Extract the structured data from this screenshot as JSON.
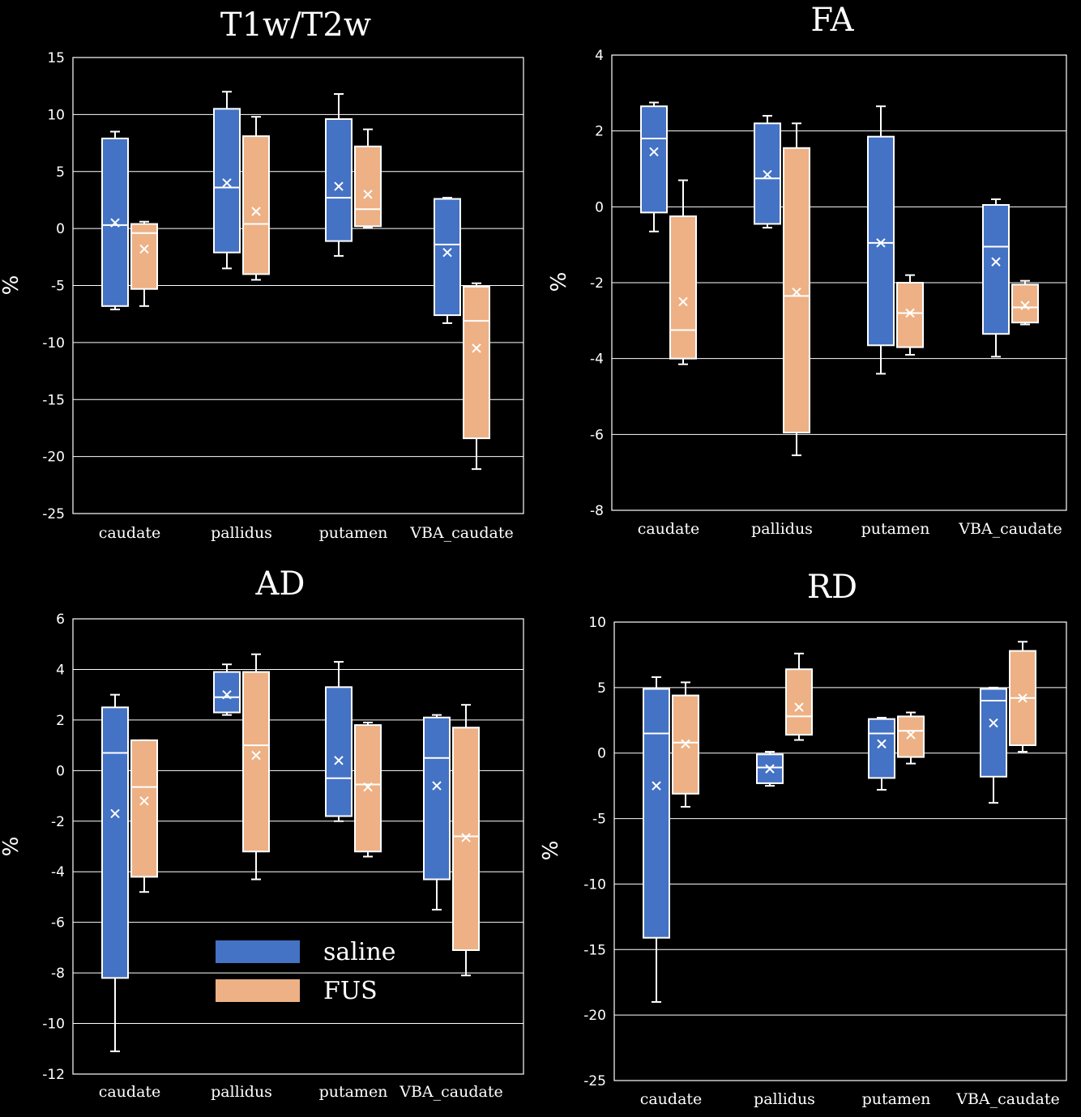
{
  "chart_data": [
    {
      "type": "box",
      "title": "T1w/T2w",
      "ylabel": "%",
      "xlabel": "",
      "ylim": [
        -25,
        15
      ],
      "yticks": [
        15,
        10,
        5,
        0,
        -5,
        -10,
        -15,
        -20,
        -25
      ],
      "categories": [
        "caudate",
        "pallidus",
        "putamen",
        "VBA_caudate"
      ],
      "grid": true,
      "series": [
        {
          "name": "saline",
          "color": "#4472c4",
          "boxes": [
            {
              "min": -7.1,
              "q1": -6.8,
              "median": 0.3,
              "q3": 7.9,
              "max": 8.5,
              "mean": 0.5
            },
            {
              "min": -3.5,
              "q1": -2.1,
              "median": 3.6,
              "q3": 10.5,
              "max": 12.0,
              "mean": 4.0
            },
            {
              "min": -2.4,
              "q1": -1.1,
              "median": 2.7,
              "q3": 9.6,
              "max": 11.8,
              "mean": 3.7
            },
            {
              "min": -8.3,
              "q1": -7.6,
              "median": -1.4,
              "q3": 2.6,
              "max": 2.7,
              "mean": -2.1
            }
          ]
        },
        {
          "name": "FUS",
          "color": "#edb185",
          "boxes": [
            {
              "min": -6.8,
              "q1": -5.3,
              "median": -0.4,
              "q3": 0.4,
              "max": 0.6,
              "mean": -1.8
            },
            {
              "min": -4.5,
              "q1": -4.0,
              "median": 0.4,
              "q3": 8.1,
              "max": 9.8,
              "mean": 1.5
            },
            {
              "min": 0.1,
              "q1": 0.2,
              "median": 1.7,
              "q3": 7.2,
              "max": 8.7,
              "mean": 3.0
            },
            {
              "min": -21.1,
              "q1": -18.4,
              "median": -8.1,
              "q3": -5.1,
              "max": -4.8,
              "mean": -10.5
            }
          ]
        }
      ]
    },
    {
      "type": "box",
      "title": "FA",
      "ylabel": "%",
      "xlabel": "",
      "ylim": [
        -8,
        4
      ],
      "yticks": [
        4,
        2,
        0,
        -2,
        -4,
        -6,
        -8
      ],
      "categories": [
        "caudate",
        "pallidus",
        "putamen",
        "VBA_caudate"
      ],
      "grid": true,
      "series": [
        {
          "name": "saline",
          "color": "#4472c4",
          "boxes": [
            {
              "min": -0.65,
              "q1": -0.15,
              "median": 1.8,
              "q3": 2.65,
              "max": 2.75,
              "mean": 1.45
            },
            {
              "min": -0.55,
              "q1": -0.45,
              "median": 0.75,
              "q3": 2.2,
              "max": 2.4,
              "mean": 0.85
            },
            {
              "min": -4.4,
              "q1": -3.65,
              "median": -0.95,
              "q3": 1.85,
              "max": 2.65,
              "mean": -0.95
            },
            {
              "min": -3.95,
              "q1": -3.35,
              "median": -1.05,
              "q3": 0.05,
              "max": 0.2,
              "mean": -1.45
            }
          ]
        },
        {
          "name": "FUS",
          "color": "#edb185",
          "boxes": [
            {
              "min": -4.15,
              "q1": -4.0,
              "median": -3.25,
              "q3": -0.25,
              "max": 0.7,
              "mean": -2.5
            },
            {
              "min": -6.55,
              "q1": -5.95,
              "median": -2.35,
              "q3": 1.55,
              "max": 2.2,
              "mean": -2.25
            },
            {
              "min": -3.9,
              "q1": -3.7,
              "median": -2.8,
              "q3": -2.0,
              "max": -1.8,
              "mean": -2.8
            },
            {
              "min": -3.1,
              "q1": -3.05,
              "median": -2.65,
              "q3": -2.05,
              "max": -1.95,
              "mean": -2.6
            }
          ]
        }
      ]
    },
    {
      "type": "box",
      "title": "AD",
      "ylabel": "%",
      "xlabel": "",
      "ylim": [
        -12,
        6
      ],
      "yticks": [
        6,
        4,
        2,
        0,
        -2,
        -4,
        -6,
        -8,
        -10,
        -12
      ],
      "categories": [
        "caudate",
        "pallidus",
        "putamen",
        "VBA_caudate"
      ],
      "grid": true,
      "series": [
        {
          "name": "saline",
          "color": "#4472c4",
          "boxes": [
            {
              "min": -11.1,
              "q1": -8.2,
              "median": 0.7,
              "q3": 2.5,
              "max": 3.0,
              "mean": -1.7
            },
            {
              "min": 2.2,
              "q1": 2.3,
              "median": 2.9,
              "q3": 3.9,
              "max": 4.2,
              "mean": 3.0
            },
            {
              "min": -2.0,
              "q1": -1.8,
              "median": -0.3,
              "q3": 3.3,
              "max": 4.3,
              "mean": 0.4
            },
            {
              "min": -5.5,
              "q1": -4.3,
              "median": 0.5,
              "q3": 2.1,
              "max": 2.2,
              "mean": -0.6
            }
          ]
        },
        {
          "name": "FUS",
          "color": "#edb185",
          "boxes": [
            {
              "min": -4.8,
              "q1": -4.2,
              "median": -0.65,
              "q3": 1.2,
              "max": 1.2,
              "mean": -1.2
            },
            {
              "min": -4.3,
              "q1": -3.2,
              "median": 1.0,
              "q3": 3.9,
              "max": 4.6,
              "mean": 0.6
            },
            {
              "min": -3.4,
              "q1": -3.2,
              "median": -0.55,
              "q3": 1.8,
              "max": 1.9,
              "mean": -0.65
            },
            {
              "min": -8.1,
              "q1": -7.1,
              "median": -2.6,
              "q3": 1.7,
              "max": 2.6,
              "mean": -2.65
            }
          ]
        }
      ]
    },
    {
      "type": "box",
      "title": "RD",
      "ylabel": "%",
      "xlabel": "",
      "ylim": [
        -25,
        10
      ],
      "yticks": [
        10,
        5,
        0,
        -5,
        -10,
        -15,
        -20,
        -25
      ],
      "categories": [
        "caudate",
        "pallidus",
        "putamen",
        "VBA_caudate"
      ],
      "grid": true,
      "series": [
        {
          "name": "saline",
          "color": "#4472c4",
          "boxes": [
            {
              "min": -19.0,
              "q1": -14.1,
              "median": 1.5,
              "q3": 4.9,
              "max": 5.8,
              "mean": -2.5
            },
            {
              "min": -2.5,
              "q1": -2.3,
              "median": -1.1,
              "q3": -0.1,
              "max": 0.1,
              "mean": -1.2
            },
            {
              "min": -2.8,
              "q1": -1.9,
              "median": 1.5,
              "q3": 2.6,
              "max": 2.7,
              "mean": 0.7
            },
            {
              "min": -3.8,
              "q1": -1.8,
              "median": 4.0,
              "q3": 4.9,
              "max": 5.0,
              "mean": 2.3
            }
          ]
        },
        {
          "name": "FUS",
          "color": "#edb185",
          "boxes": [
            {
              "min": -4.1,
              "q1": -3.1,
              "median": 0.8,
              "q3": 4.4,
              "max": 5.4,
              "mean": 0.7
            },
            {
              "min": 1.0,
              "q1": 1.4,
              "median": 2.8,
              "q3": 6.4,
              "max": 7.6,
              "mean": 3.5
            },
            {
              "min": -0.8,
              "q1": -0.3,
              "median": 1.7,
              "q3": 2.8,
              "max": 3.1,
              "mean": 1.4
            },
            {
              "min": 0.1,
              "q1": 0.6,
              "median": 4.2,
              "q3": 7.8,
              "max": 8.5,
              "mean": 4.2
            }
          ]
        }
      ]
    }
  ],
  "legend": {
    "items": [
      {
        "label": "saline",
        "color": "#4472c4"
      },
      {
        "label": "FUS",
        "color": "#edb185"
      }
    ],
    "placement": "bottom-center of AD panel"
  }
}
